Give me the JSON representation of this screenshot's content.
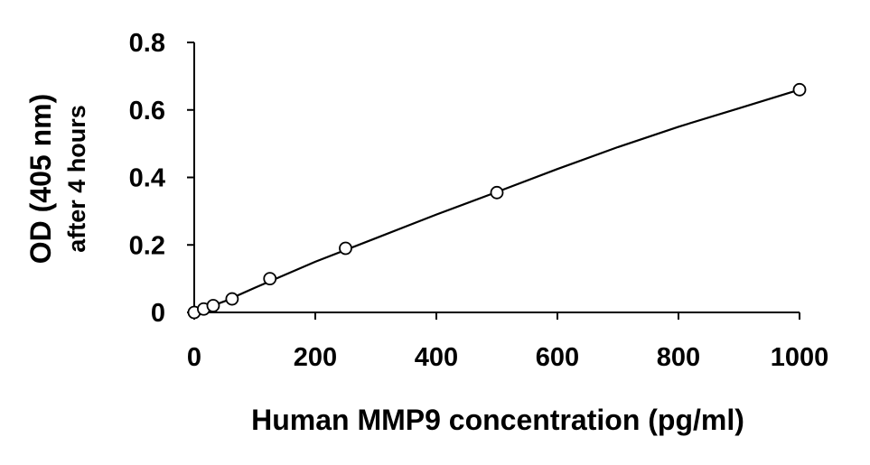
{
  "chart_data": {
    "type": "scatter",
    "title": "",
    "xlabel": "Human MMP9 concentration (pg/ml)",
    "ylabel_line1": "OD (405 nm)",
    "ylabel_line2": "after 4 hours",
    "xlim": [
      0,
      1000
    ],
    "ylim": [
      0,
      0.8
    ],
    "xticks": [
      0,
      200,
      400,
      600,
      800,
      1000
    ],
    "xtick_labels": [
      "0",
      "200",
      "400",
      "600",
      "800",
      "1000"
    ],
    "yticks": [
      0,
      0.2,
      0.4,
      0.6,
      0.8
    ],
    "ytick_labels": [
      "0",
      "0.2",
      "0.4",
      "0.6",
      "0.8"
    ],
    "grid": false,
    "legend": "none",
    "series": [
      {
        "marker": "open-circle",
        "x": [
          0,
          15.6,
          31.3,
          62.5,
          125,
          250,
          500,
          1000
        ],
        "y": [
          0.0,
          0.01,
          0.02,
          0.04,
          0.1,
          0.19,
          0.355,
          0.66
        ]
      }
    ],
    "fit_line": {
      "style": "solid",
      "x": [
        0,
        50,
        100,
        200,
        300,
        400,
        500,
        600,
        700,
        800,
        900,
        1000
      ],
      "y": [
        0.0,
        0.033,
        0.073,
        0.15,
        0.22,
        0.29,
        0.357,
        0.425,
        0.49,
        0.55,
        0.605,
        0.66
      ]
    },
    "colors": {
      "axis": "#000000",
      "marker_stroke": "#000000",
      "marker_fill": "#ffffff",
      "line": "#000000"
    }
  }
}
